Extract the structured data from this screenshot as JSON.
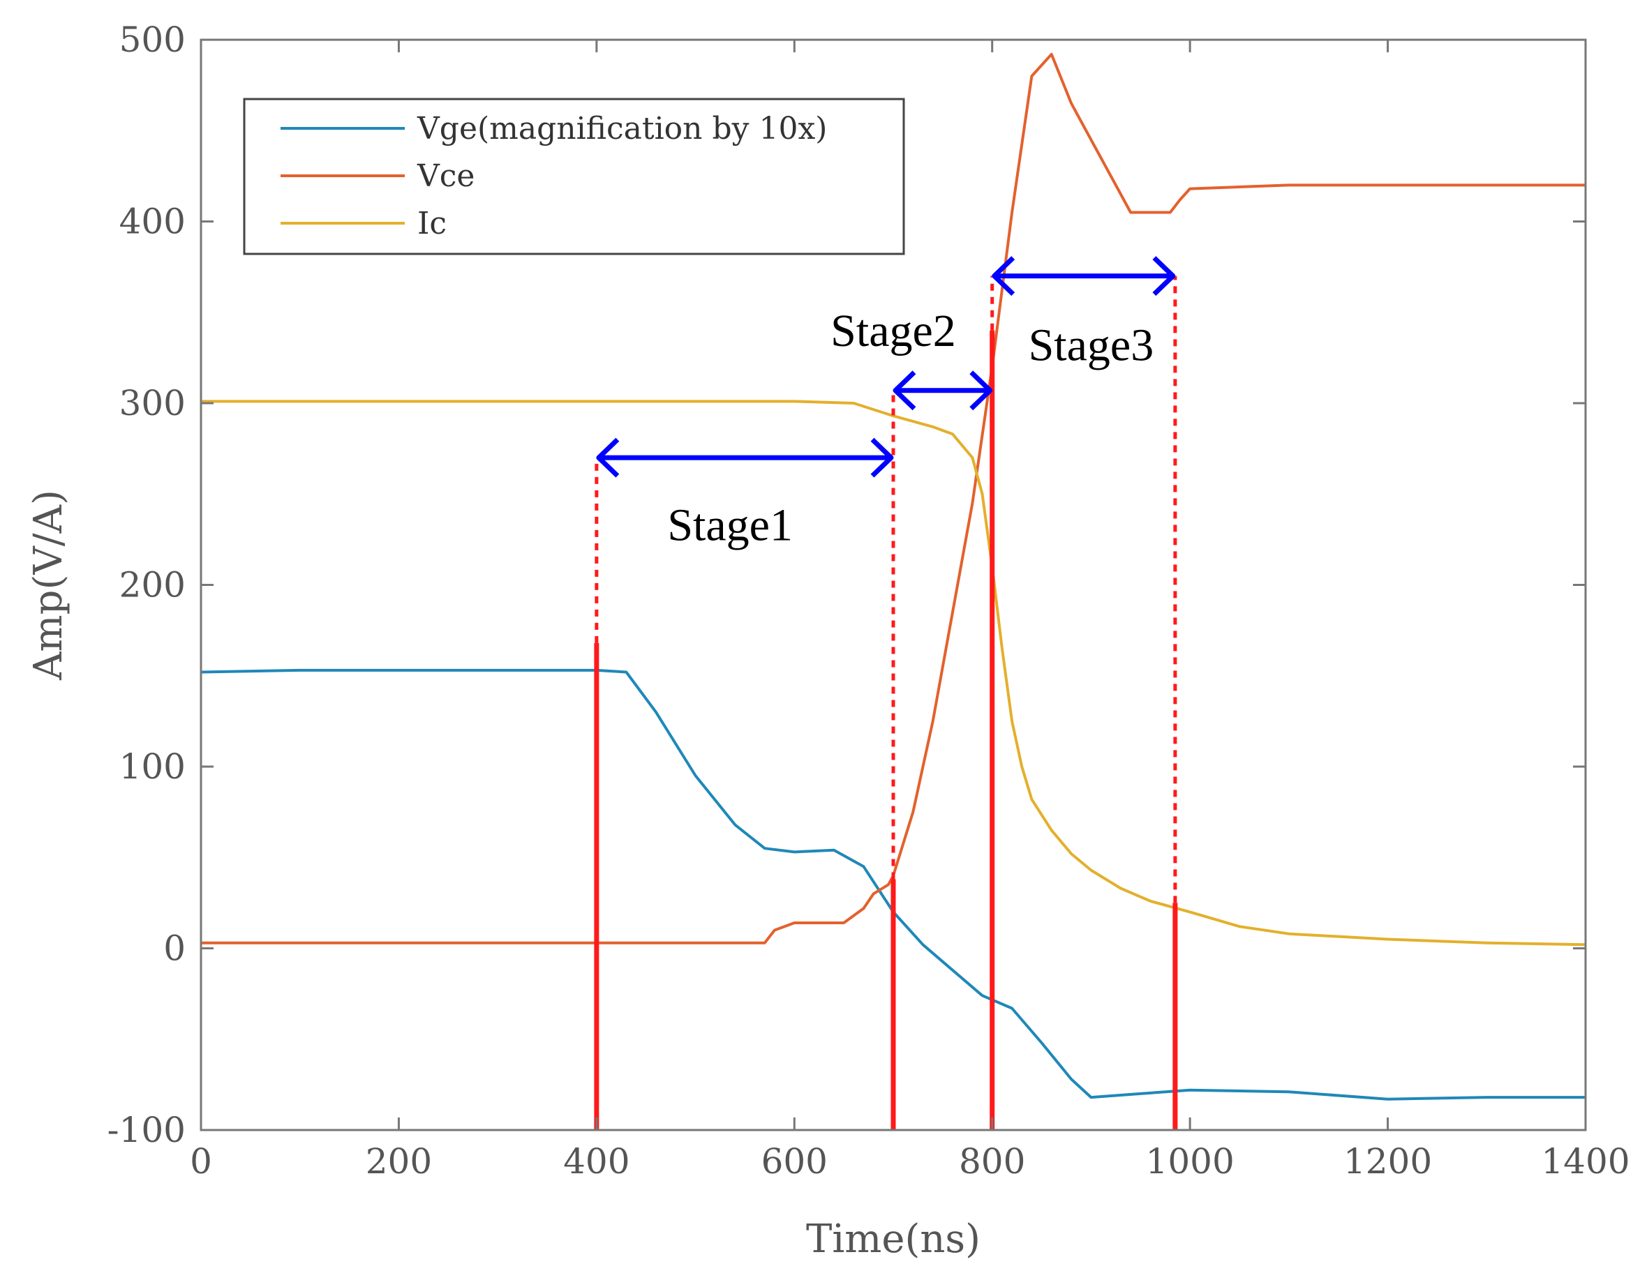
{
  "chart_data": {
    "type": "line",
    "title": "",
    "xlabel": "Time(ns)",
    "ylabel": "Amp(V/A)",
    "xlim": [
      0,
      1400
    ],
    "ylim": [
      -100,
      500
    ],
    "xticks": [
      0,
      200,
      400,
      600,
      800,
      1000,
      1200,
      1400
    ],
    "yticks": [
      -100,
      0,
      100,
      200,
      300,
      400,
      500
    ],
    "grid": false,
    "legend_position": "top-left",
    "series": [
      {
        "name": "Vge(magnification by 10x)",
        "color": "#1f88b8",
        "x": [
          0,
          100,
          200,
          300,
          400,
          430,
          460,
          500,
          540,
          570,
          600,
          640,
          670,
          700,
          730,
          760,
          790,
          820,
          850,
          880,
          900,
          950,
          1000,
          1100,
          1200,
          1300,
          1400
        ],
        "y": [
          152,
          153,
          153,
          153,
          153,
          152,
          130,
          95,
          68,
          55,
          53,
          54,
          45,
          20,
          2,
          -12,
          -26,
          -33,
          -52,
          -72,
          -82,
          -80,
          -78,
          -79,
          -83,
          -82,
          -82
        ]
      },
      {
        "name": "Vce",
        "color": "#e3612d",
        "x": [
          0,
          100,
          200,
          300,
          400,
          500,
          570,
          580,
          600,
          650,
          670,
          680,
          695,
          700,
          720,
          740,
          760,
          780,
          800,
          820,
          840,
          860,
          880,
          900,
          920,
          940,
          960,
          980,
          990,
          1000,
          1100,
          1200,
          1300,
          1400
        ],
        "y": [
          3,
          3,
          3,
          3,
          3,
          3,
          3,
          10,
          14,
          14,
          22,
          30,
          35,
          40,
          75,
          125,
          185,
          245,
          320,
          405,
          480,
          492,
          465,
          445,
          425,
          405,
          405,
          405,
          412,
          418,
          420,
          420,
          420,
          420
        ]
      },
      {
        "name": "Ic",
        "color": "#e3b02c",
        "x": [
          0,
          100,
          200,
          300,
          400,
          500,
          600,
          660,
          700,
          740,
          760,
          780,
          790,
          800,
          810,
          820,
          830,
          840,
          860,
          880,
          900,
          930,
          960,
          1000,
          1050,
          1100,
          1200,
          1300,
          1400
        ],
        "y": [
          301,
          301,
          301,
          301,
          301,
          301,
          301,
          300,
          293,
          287,
          283,
          270,
          250,
          210,
          165,
          125,
          100,
          82,
          65,
          52,
          43,
          33,
          26,
          20,
          12,
          8,
          5,
          3,
          2
        ]
      }
    ],
    "markers": [
      {
        "x": 400,
        "y_top": 270,
        "y_solid_top": 168
      },
      {
        "x": 700,
        "y_top": 307,
        "y_solid_top": 38
      },
      {
        "x": 800,
        "y_top": 370,
        "y_solid_top": 340
      },
      {
        "x": 985,
        "y_top": 370,
        "y_solid_top": 25
      }
    ],
    "annotations": [
      {
        "label": "Stage1",
        "x_start": 400,
        "x_end": 700,
        "y_arrow": 270,
        "label_x": 535,
        "label_y": 233
      },
      {
        "label": "Stage2",
        "x_start": 700,
        "x_end": 800,
        "y_arrow": 307,
        "label_x": 700,
        "label_y": 340
      },
      {
        "label": "Stage3",
        "x_start": 800,
        "x_end": 985,
        "y_arrow": 370,
        "label_x": 900,
        "label_y": 332
      }
    ]
  }
}
